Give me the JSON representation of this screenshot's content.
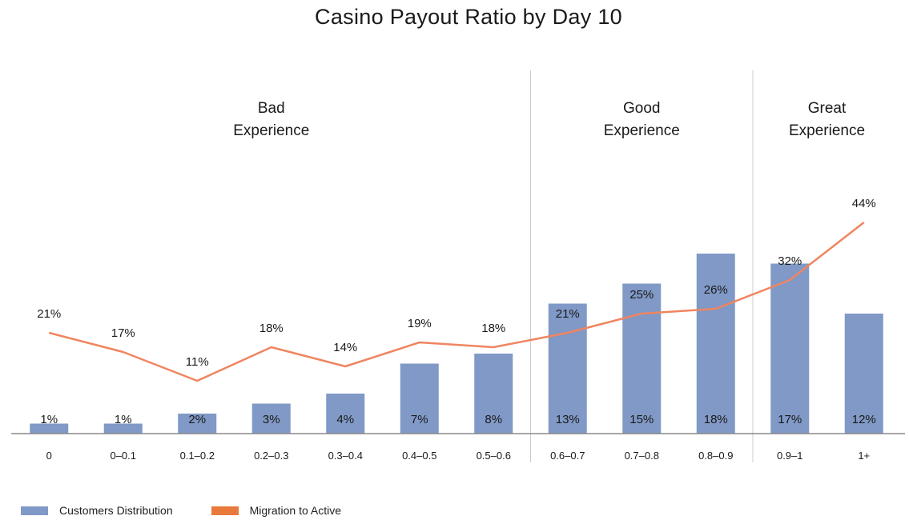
{
  "colors": {
    "bar": "#8099c6",
    "line": "#f08560",
    "legend_line": "#e97a3c",
    "divider": "#cccccc",
    "axis": "#888888"
  },
  "chart_data": {
    "type": "bar",
    "title": "Casino Payout Ratio by Day 10",
    "categories": [
      "0",
      "0–0.1",
      "0.1–0.2",
      "0.2–0.3",
      "0.3–0.4",
      "0.4–0.5",
      "0.5–0.6",
      "0.6–0.7",
      "0.7–0.8",
      "0.8–0.9",
      "0.9–1",
      "1+"
    ],
    "series": [
      {
        "name": "Customers Distribution",
        "type": "bar",
        "values": [
          1,
          1,
          2,
          3,
          4,
          7,
          8,
          13,
          15,
          18,
          17,
          12
        ],
        "labels": [
          "1%",
          "1%",
          "2%",
          "3%",
          "4%",
          "7%",
          "8%",
          "13%",
          "15%",
          "18%",
          "17%",
          "12%"
        ]
      },
      {
        "name": "Migration to Active",
        "type": "line",
        "values": [
          21,
          17,
          11,
          18,
          14,
          19,
          18,
          21,
          25,
          26,
          32,
          44
        ],
        "labels": [
          "21%",
          "17%",
          "11%",
          "18%",
          "14%",
          "19%",
          "18%",
          "21%",
          "25%",
          "26%",
          "32%",
          "44%"
        ]
      }
    ],
    "sections": [
      {
        "line1": "Bad",
        "line2": "Experience"
      },
      {
        "line1": "Good",
        "line2": "Experience"
      },
      {
        "line1": "Great",
        "line2": "Experience"
      }
    ],
    "grid": false,
    "legend_position": "bottom-left"
  }
}
